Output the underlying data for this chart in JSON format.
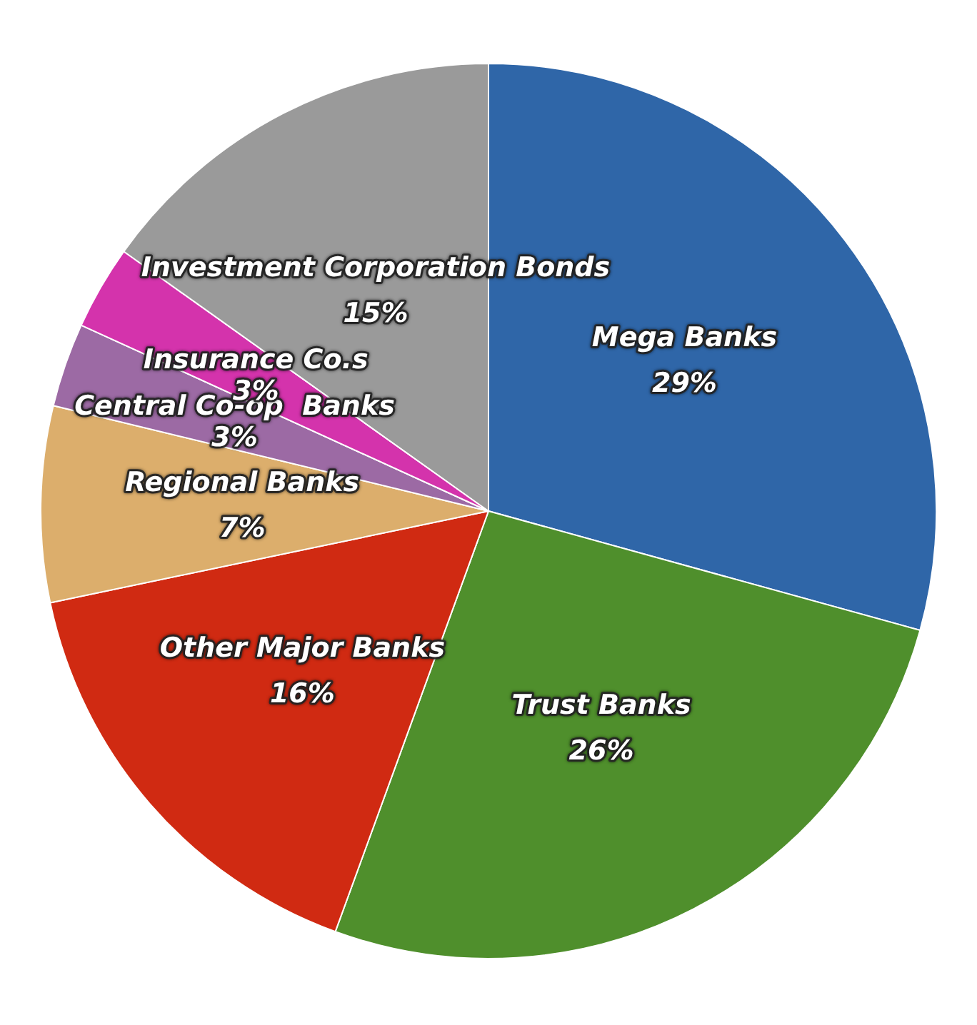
{
  "chart_data": {
    "type": "pie",
    "categories": [
      "Mega Banks",
      "Trust Banks",
      "Other Major Banks",
      "Regional Banks",
      "Central Co-op  Banks",
      "Insurance Co.s",
      "Investment Corporation Bonds"
    ],
    "values": [
      29,
      26,
      16,
      7,
      3,
      3,
      15
    ],
    "value_labels": [
      "29%",
      "26%",
      "16%",
      "7%",
      "3%",
      "3%",
      "15%"
    ],
    "colors": [
      "#2f66a8",
      "#4f8f2c",
      "#d02a12",
      "#dcae6c",
      "#9c6aa4",
      "#d433ac",
      "#9a9a9a"
    ],
    "legend": false
  }
}
